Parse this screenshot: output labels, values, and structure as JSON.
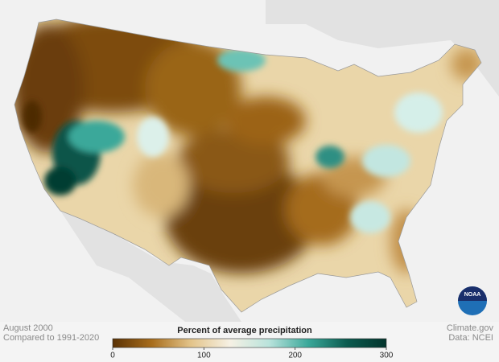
{
  "header": {
    "logo": "NOAA"
  },
  "footer": {
    "date": "August 2000",
    "baseline": "Compared to 1991-2020",
    "source": "Climate.gov",
    "data": "Data: NCEI"
  },
  "legend": {
    "title": "Percent of average precipitation",
    "range": [
      0,
      300
    ],
    "ticks": [
      0,
      100,
      200,
      300
    ],
    "colors": [
      "#5a3205",
      "#a86d1c",
      "#e3c48a",
      "#f6f1e4",
      "#b9e3dc",
      "#3aa89a",
      "#0b5b4f",
      "#03352d"
    ]
  }
}
